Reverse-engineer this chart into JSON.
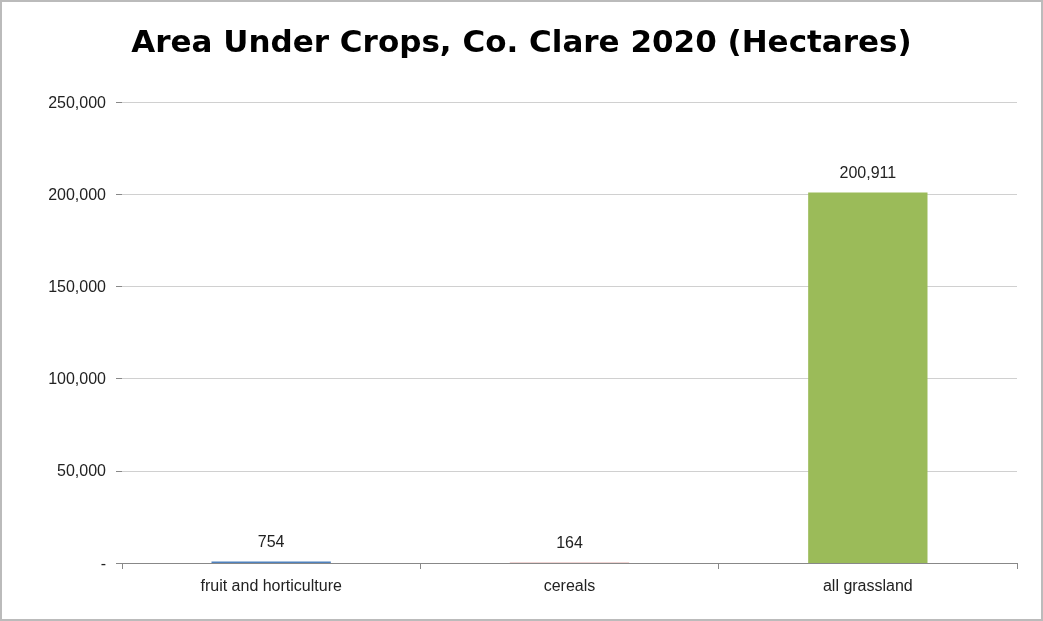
{
  "chart_data": {
    "type": "bar",
    "title": "Area Under Crops, Co. Clare 2020 (Hectares)",
    "categories": [
      "fruit and horticulture",
      "cereals",
      "all grassland"
    ],
    "values": [
      754,
      164,
      200911
    ],
    "colors": [
      "#4f81bd",
      "#c0504d",
      "#9bbb59"
    ],
    "value_labels": [
      "754",
      "164",
      "200,911"
    ],
    "ylim": [
      0,
      250000
    ],
    "yticks": [
      {
        "value": 0,
        "label": "-"
      },
      {
        "value": 50000,
        "label": "50,000"
      },
      {
        "value": 100000,
        "label": "100,000"
      },
      {
        "value": 150000,
        "label": "150,000"
      },
      {
        "value": 200000,
        "label": "200,000"
      },
      {
        "value": 250000,
        "label": "250,000"
      }
    ],
    "grid": "y"
  }
}
